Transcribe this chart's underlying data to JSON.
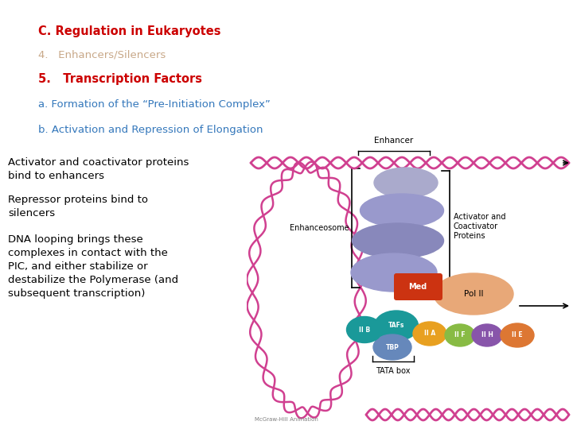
{
  "background_color": "#ffffff",
  "title_text": "C. Regulation in Eukaryotes",
  "title_color": "#cc0000",
  "title_fontsize": 10.5,
  "item4_text": "4.   Enhancers/Silencers",
  "item4_color": "#c8a888",
  "item4_fontsize": 9.5,
  "item5_text": "5.   Transcription Factors",
  "item5_color": "#cc0000",
  "item5_fontsize": 10.5,
  "itema_text": "a. Formation of the “Pre-Initiation Complex”",
  "itema_color": "#3377bb",
  "itema_fontsize": 9.5,
  "itemb_text": "b. Activation and Repression of Elongation",
  "itemb_color": "#3377bb",
  "itemb_fontsize": 9.5,
  "body1_text": "Activator and coactivator proteins\nbind to enhancers",
  "body1_color": "#000000",
  "body1_fontsize": 9.5,
  "body2_text": "Repressor proteins bind to\nsilencers",
  "body2_color": "#000000",
  "body2_fontsize": 9.5,
  "body3_text": "DNA looping brings these\ncomplexes in contact with the\nPIC, and either stabilize or\ndestabilize the Polymerase (and\nsubsequent transcription)",
  "body3_color": "#000000",
  "body3_fontsize": 9.5,
  "dna_color": "#d04090",
  "blob_colors": [
    "#9999cc",
    "#8888bb",
    "#8888bb",
    "#9999cc"
  ],
  "med_color": "#cc3311",
  "polii_color": "#e8a878",
  "iib_color": "#1a9999",
  "tbp_color": "#6688bb",
  "tafs_color": "#1a9999",
  "iia_color": "#e8a020",
  "iif_color": "#88bb44",
  "iih_color": "#8855aa",
  "iie_color": "#dd7733",
  "label_color": "#000000"
}
